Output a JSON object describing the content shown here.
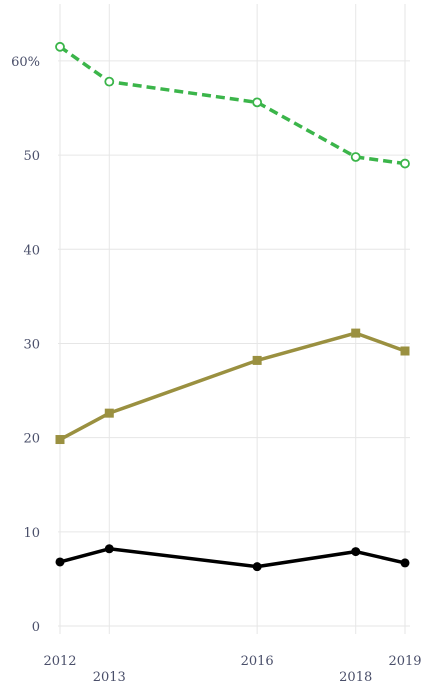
{
  "chart_data": {
    "type": "line",
    "x": [
      2012,
      2013,
      2016,
      2018,
      2019
    ],
    "x_tick_labels": [
      "2012",
      "2013",
      "2016",
      "2018",
      "2019"
    ],
    "y_tick_labels": [
      "0",
      "10",
      "20",
      "30",
      "40",
      "50",
      "60%"
    ],
    "ylim": [
      0,
      65
    ],
    "grid": true,
    "series": [
      {
        "values": [
          61.5,
          57.8,
          55.6,
          49.8,
          49.1
        ],
        "color": "#3bb54a",
        "line_style": "dashed",
        "marker": "open-circle"
      },
      {
        "values": [
          19.8,
          22.6,
          28.2,
          31.1,
          29.2
        ],
        "color": "#9a9040",
        "line_style": "solid",
        "marker": "square"
      },
      {
        "values": [
          6.8,
          8.2,
          6.3,
          7.9,
          6.7
        ],
        "color": "#000000",
        "line_style": "solid",
        "marker": "filled-circle"
      }
    ]
  }
}
